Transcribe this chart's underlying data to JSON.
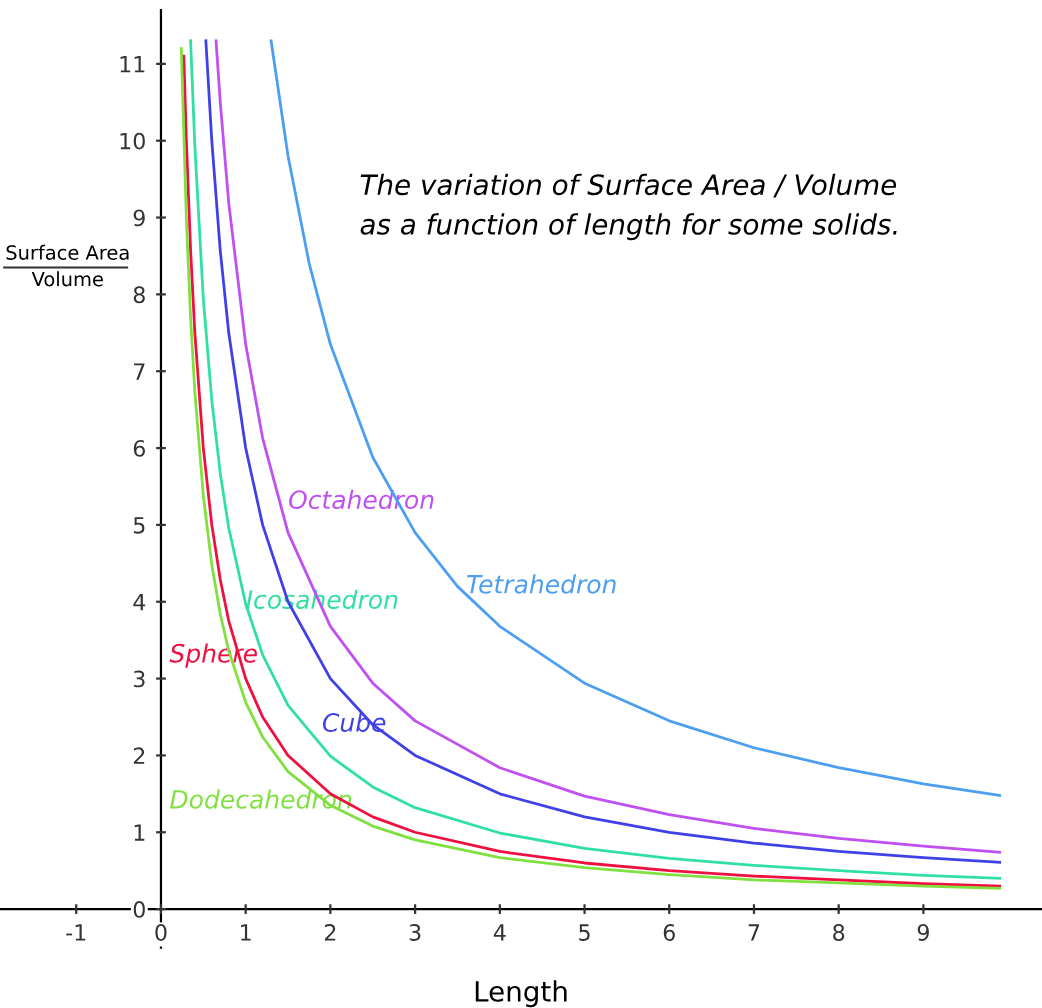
{
  "chart_data": {
    "type": "line",
    "xlabel": "Length",
    "ylabel": "Surface Area\nVolume",
    "annotations": [
      "The variation of Surface Area / Volume\nas a function of length for some solids."
    ],
    "xlim": [
      -1.9,
      10.4
    ],
    "ylim": [
      -0.5,
      11.7
    ],
    "xticks": [
      -1,
      0,
      1,
      2,
      3,
      4,
      5,
      6,
      7,
      8,
      9
    ],
    "yticks": [
      0,
      1,
      2,
      3,
      4,
      5,
      6,
      7,
      8,
      9,
      10,
      11
    ],
    "grid": false,
    "legend": false,
    "marker": "none",
    "line_style": "solid",
    "series": [
      {
        "name": "Tetrahedron",
        "color": "#4c9ff0",
        "x": [
          1.3,
          1.5,
          1.75,
          2,
          2.5,
          3,
          3.5,
          4,
          5,
          6,
          7,
          8,
          9,
          9.9
        ],
        "values": [
          11.3,
          9.8,
          8.4,
          7.35,
          5.88,
          4.9,
          4.2,
          3.68,
          2.94,
          2.45,
          2.1,
          1.84,
          1.63,
          1.48
        ]
      },
      {
        "name": "Octahedron",
        "color": "#c050f0",
        "x": [
          0.65,
          0.7,
          0.8,
          1,
          1.2,
          1.5,
          2,
          2.5,
          3,
          4,
          5,
          6,
          7,
          8,
          9,
          9.9
        ],
        "values": [
          11.3,
          10.5,
          9.19,
          7.35,
          6.13,
          4.9,
          3.68,
          2.94,
          2.45,
          1.84,
          1.47,
          1.23,
          1.05,
          0.92,
          0.82,
          0.74
        ]
      },
      {
        "name": "Icosahedron",
        "color": "#30e0a0",
        "x": [
          0.35,
          0.4,
          0.5,
          0.6,
          0.7,
          0.8,
          1,
          1.2,
          1.5,
          2,
          2.5,
          3,
          4,
          5,
          6,
          7,
          8,
          9,
          9.9
        ],
        "values": [
          11.3,
          9.93,
          7.94,
          6.62,
          5.67,
          4.96,
          3.97,
          3.31,
          2.65,
          1.99,
          1.59,
          1.32,
          0.99,
          0.79,
          0.66,
          0.57,
          0.5,
          0.44,
          0.4
        ]
      },
      {
        "name": "Sphere",
        "color": "#f01040",
        "x": [
          0.27,
          0.3,
          0.35,
          0.4,
          0.5,
          0.6,
          0.7,
          0.8,
          1,
          1.2,
          1.5,
          2,
          2.5,
          3,
          4,
          5,
          6,
          7,
          8,
          9,
          9.9
        ],
        "values": [
          11.1,
          10,
          8.57,
          7.5,
          6,
          5,
          4.29,
          3.75,
          3,
          2.5,
          2,
          1.5,
          1.2,
          1,
          0.75,
          0.6,
          0.5,
          0.43,
          0.38,
          0.33,
          0.3
        ]
      },
      {
        "name": "Cube",
        "color": "#4040e8",
        "x": [
          0.53,
          0.6,
          0.7,
          0.8,
          1,
          1.2,
          1.5,
          2,
          2.5,
          3,
          4,
          5,
          6,
          7,
          8,
          9,
          9.9
        ],
        "values": [
          11.3,
          10,
          8.57,
          7.5,
          6,
          5,
          4,
          3,
          2.4,
          2,
          1.5,
          1.2,
          1,
          0.86,
          0.75,
          0.67,
          0.61
        ]
      },
      {
        "name": "Dodecahedron",
        "color": "#80e040",
        "x": [
          0.24,
          0.3,
          0.35,
          0.4,
          0.5,
          0.6,
          0.7,
          0.8,
          1,
          1.2,
          1.5,
          2,
          2.5,
          3,
          4,
          5,
          6,
          7,
          8,
          9,
          9.9
        ],
        "values": [
          11.2,
          8.97,
          7.69,
          6.73,
          5.38,
          4.48,
          3.84,
          3.36,
          2.69,
          2.24,
          1.79,
          1.35,
          1.08,
          0.9,
          0.67,
          0.54,
          0.45,
          0.38,
          0.34,
          0.3,
          0.27
        ]
      }
    ]
  }
}
